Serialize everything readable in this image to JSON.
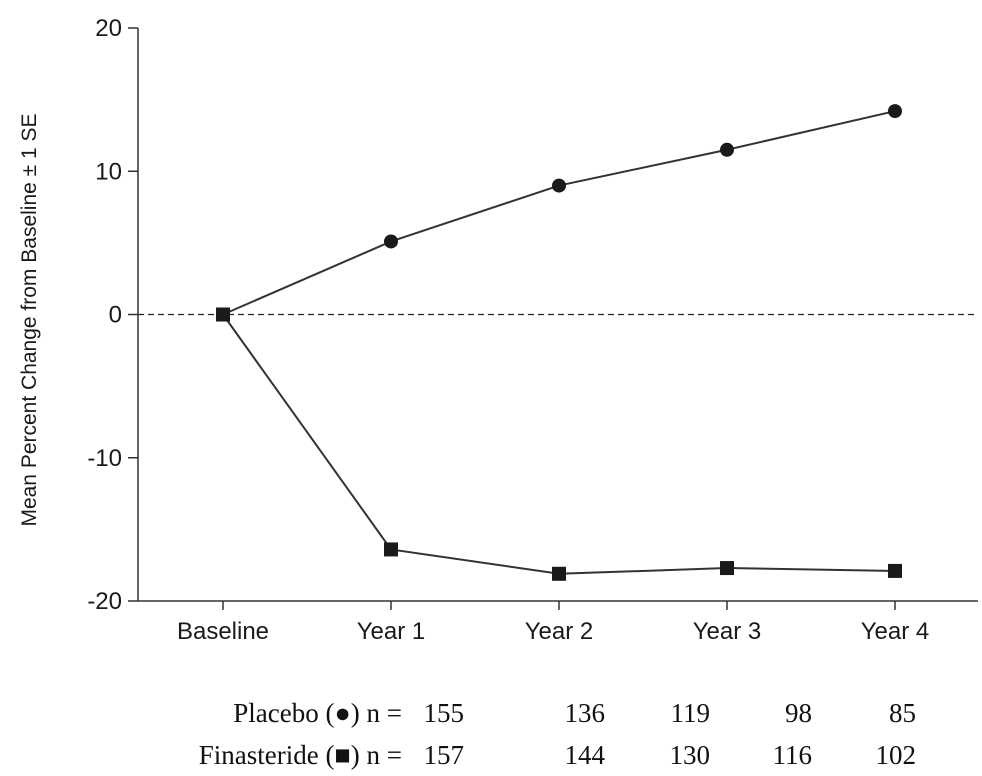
{
  "chart_data": {
    "type": "line",
    "categories": [
      "Baseline",
      "Year 1",
      "Year 2",
      "Year 3",
      "Year 4"
    ],
    "ylabel": "Mean Percent Change from Baseline  ± 1 SE",
    "ylim": [
      -20,
      20
    ],
    "yticks": [
      20,
      10,
      0,
      -10,
      -20
    ],
    "yticklabels": [
      "20",
      "10",
      "0",
      "-10",
      "-20"
    ],
    "reference_line": {
      "y": 0,
      "style": "dashed"
    },
    "grid": false,
    "series": [
      {
        "name": "Placebo",
        "marker": "circle",
        "values": [
          0,
          5.1,
          9.0,
          11.5,
          14.2
        ]
      },
      {
        "name": "Finasteride",
        "marker": "square",
        "values": [
          0,
          -16.4,
          -18.1,
          -17.7,
          -17.9
        ]
      }
    ],
    "colors": {
      "line": "#333333",
      "marker": "#1a1a1a",
      "axis": "#333333"
    }
  },
  "n_table": {
    "rows": [
      {
        "label": "Placebo (●) n =",
        "values": [
          "155",
          "136",
          "119",
          "98",
          "85"
        ]
      },
      {
        "label": "Finasteride (■) n =",
        "values": [
          "157",
          "144",
          "130",
          "116",
          "102"
        ]
      }
    ]
  }
}
